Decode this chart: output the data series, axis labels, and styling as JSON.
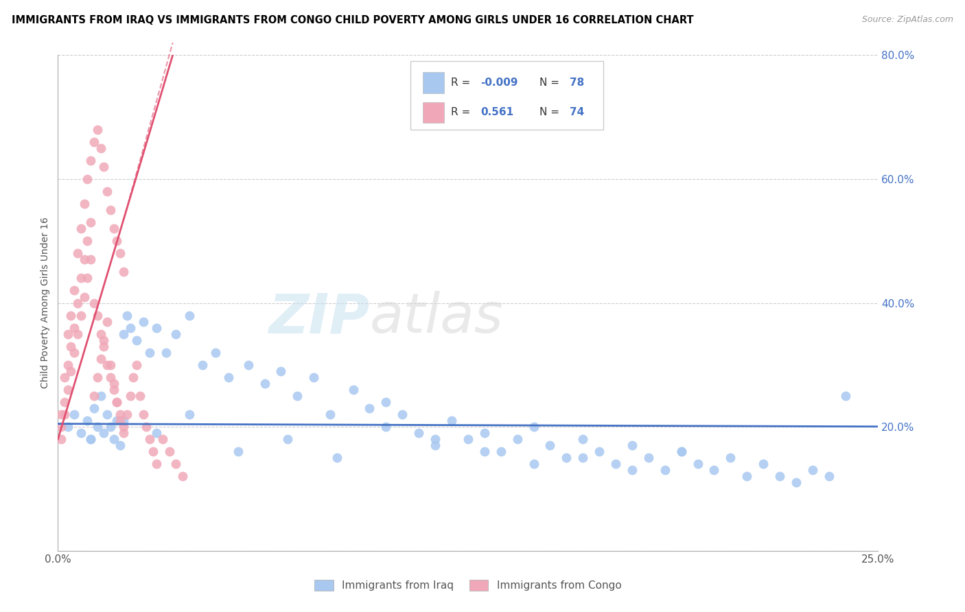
{
  "title": "IMMIGRANTS FROM IRAQ VS IMMIGRANTS FROM CONGO CHILD POVERTY AMONG GIRLS UNDER 16 CORRELATION CHART",
  "source": "Source: ZipAtlas.com",
  "ylabel": "Child Poverty Among Girls Under 16",
  "xlim": [
    0.0,
    0.25
  ],
  "ylim": [
    0.0,
    0.8
  ],
  "iraq_color": "#a8c8f0",
  "congo_color": "#f0a8b8",
  "iraq_line_color": "#4472c4",
  "congo_line_color": "#e05070",
  "tick_color": "#4472c4",
  "iraq_R": -0.009,
  "iraq_N": 78,
  "congo_R": 0.561,
  "congo_N": 74,
  "iraq_label": "Immigrants from Iraq",
  "congo_label": "Immigrants from Congo",
  "iraq_x": [
    0.003,
    0.005,
    0.007,
    0.009,
    0.01,
    0.011,
    0.012,
    0.013,
    0.014,
    0.015,
    0.016,
    0.017,
    0.018,
    0.019,
    0.02,
    0.021,
    0.022,
    0.024,
    0.026,
    0.028,
    0.03,
    0.033,
    0.036,
    0.04,
    0.044,
    0.048,
    0.052,
    0.058,
    0.063,
    0.068,
    0.073,
    0.078,
    0.083,
    0.09,
    0.095,
    0.1,
    0.105,
    0.11,
    0.115,
    0.12,
    0.125,
    0.13,
    0.135,
    0.14,
    0.145,
    0.15,
    0.155,
    0.16,
    0.165,
    0.17,
    0.175,
    0.18,
    0.185,
    0.19,
    0.195,
    0.2,
    0.205,
    0.21,
    0.215,
    0.22,
    0.225,
    0.23,
    0.235,
    0.01,
    0.02,
    0.03,
    0.04,
    0.055,
    0.07,
    0.085,
    0.1,
    0.115,
    0.13,
    0.145,
    0.16,
    0.175,
    0.19,
    0.24
  ],
  "iraq_y": [
    0.2,
    0.22,
    0.19,
    0.21,
    0.18,
    0.23,
    0.2,
    0.25,
    0.19,
    0.22,
    0.2,
    0.18,
    0.21,
    0.17,
    0.35,
    0.38,
    0.36,
    0.34,
    0.37,
    0.32,
    0.36,
    0.32,
    0.35,
    0.38,
    0.3,
    0.32,
    0.28,
    0.3,
    0.27,
    0.29,
    0.25,
    0.28,
    0.22,
    0.26,
    0.23,
    0.2,
    0.22,
    0.19,
    0.17,
    0.21,
    0.18,
    0.19,
    0.16,
    0.18,
    0.2,
    0.17,
    0.15,
    0.18,
    0.16,
    0.14,
    0.17,
    0.15,
    0.13,
    0.16,
    0.14,
    0.13,
    0.15,
    0.12,
    0.14,
    0.12,
    0.11,
    0.13,
    0.12,
    0.18,
    0.21,
    0.19,
    0.22,
    0.16,
    0.18,
    0.15,
    0.24,
    0.18,
    0.16,
    0.14,
    0.15,
    0.13,
    0.16,
    0.25
  ],
  "congo_x": [
    0.001,
    0.002,
    0.003,
    0.004,
    0.005,
    0.006,
    0.007,
    0.008,
    0.009,
    0.01,
    0.011,
    0.012,
    0.013,
    0.014,
    0.015,
    0.016,
    0.017,
    0.018,
    0.019,
    0.02,
    0.001,
    0.002,
    0.003,
    0.004,
    0.005,
    0.006,
    0.007,
    0.008,
    0.009,
    0.01,
    0.011,
    0.012,
    0.013,
    0.014,
    0.015,
    0.016,
    0.017,
    0.018,
    0.019,
    0.02,
    0.001,
    0.002,
    0.003,
    0.004,
    0.005,
    0.006,
    0.007,
    0.008,
    0.009,
    0.01,
    0.011,
    0.012,
    0.013,
    0.014,
    0.015,
    0.016,
    0.017,
    0.018,
    0.019,
    0.02,
    0.021,
    0.022,
    0.023,
    0.024,
    0.025,
    0.026,
    0.027,
    0.028,
    0.029,
    0.03,
    0.032,
    0.034,
    0.036,
    0.038
  ],
  "congo_y": [
    0.22,
    0.28,
    0.35,
    0.38,
    0.42,
    0.48,
    0.52,
    0.56,
    0.6,
    0.63,
    0.66,
    0.68,
    0.65,
    0.62,
    0.58,
    0.55,
    0.52,
    0.5,
    0.48,
    0.45,
    0.2,
    0.24,
    0.3,
    0.33,
    0.36,
    0.4,
    0.44,
    0.47,
    0.5,
    0.53,
    0.4,
    0.38,
    0.35,
    0.33,
    0.3,
    0.28,
    0.26,
    0.24,
    0.22,
    0.2,
    0.18,
    0.22,
    0.26,
    0.29,
    0.32,
    0.35,
    0.38,
    0.41,
    0.44,
    0.47,
    0.25,
    0.28,
    0.31,
    0.34,
    0.37,
    0.3,
    0.27,
    0.24,
    0.21,
    0.19,
    0.22,
    0.25,
    0.28,
    0.3,
    0.25,
    0.22,
    0.2,
    0.18,
    0.16,
    0.14,
    0.18,
    0.16,
    0.14,
    0.12
  ]
}
